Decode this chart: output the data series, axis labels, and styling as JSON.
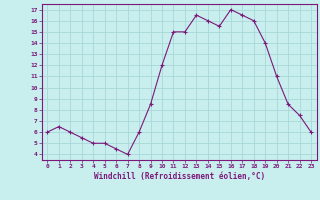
{
  "x": [
    0,
    1,
    2,
    3,
    4,
    5,
    6,
    7,
    8,
    9,
    10,
    11,
    12,
    13,
    14,
    15,
    16,
    17,
    18,
    19,
    20,
    21,
    22,
    23
  ],
  "y": [
    6,
    6.5,
    6,
    5.5,
    5,
    5,
    4.5,
    4,
    6,
    8.5,
    12,
    15,
    15,
    16.5,
    16,
    15.5,
    17,
    16.5,
    16,
    14,
    11,
    8.5,
    7.5,
    6
  ],
  "line_color": "#7b1a7b",
  "marker": "+",
  "marker_color": "#7b1a7b",
  "bg_color": "#c8eeee",
  "grid_color": "#a8d8d8",
  "xlabel": "Windchill (Refroidissement éolien,°C)",
  "xlabel_color": "#7b1a7b",
  "xtick_color": "#7b1a7b",
  "ytick_color": "#7b1a7b",
  "spine_color": "#7b1a7b",
  "xlim": [
    -0.5,
    23.5
  ],
  "ylim": [
    3.5,
    17.5
  ],
  "yticks": [
    4,
    5,
    6,
    7,
    8,
    9,
    10,
    11,
    12,
    13,
    14,
    15,
    16,
    17
  ],
  "xticks": [
    0,
    1,
    2,
    3,
    4,
    5,
    6,
    7,
    8,
    9,
    10,
    11,
    12,
    13,
    14,
    15,
    16,
    17,
    18,
    19,
    20,
    21,
    22,
    23
  ]
}
